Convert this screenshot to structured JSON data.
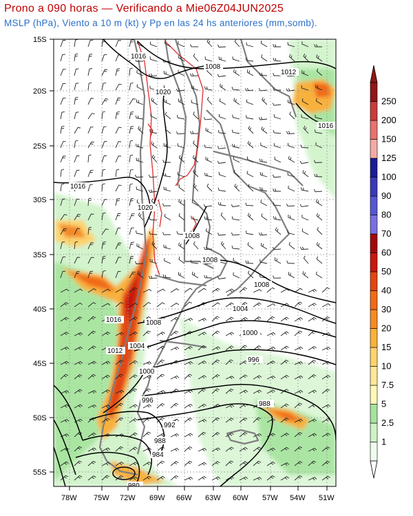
{
  "title": "Prono a 090 horas — Verificando a Mie06Z04JUN2025",
  "subtitle": "MSLP (hPa), Viento a 10 m (kt) y Pp en las 24 hs anteriores (mm,somb).",
  "lat_labels": [
    "15S",
    "20S",
    "25S",
    "30S",
    "35S",
    "40S",
    "45S",
    "50S",
    "55S"
  ],
  "lon_labels": [
    "78W",
    "75W",
    "72W",
    "69W",
    "66W",
    "63W",
    "60W",
    "57W",
    "54W",
    "51W"
  ],
  "colorbar": {
    "labels": [
      "1",
      "2.5",
      "5",
      "7.5",
      "10",
      "15",
      "20",
      "30",
      "40",
      "50",
      "60",
      "70",
      "80",
      "90",
      "100",
      "125",
      "150",
      "200",
      "250"
    ],
    "colors": [
      "#f0fbef",
      "#cdf2c6",
      "#a6e39d",
      "#fff9b8",
      "#fde79a",
      "#fdd36e",
      "#f8b13c",
      "#f48a25",
      "#f16a17",
      "#e14612",
      "#c8170e",
      "#a10909",
      "#7a6ee0",
      "#5656d0",
      "#3a3ab8",
      "#1c1c95",
      "#f3aaa6",
      "#e7726e",
      "#c83c3c",
      "#8f1717"
    ]
  },
  "isobar_labels": [
    "1016",
    "1008",
    "1012",
    "1020",
    "1016",
    "1016",
    "1020",
    "1008",
    "1008",
    "1008",
    "1016",
    "1008",
    "1004",
    "1000",
    "996",
    "1012",
    "1004",
    "1000",
    "996",
    "988",
    "992",
    "988",
    "984",
    "980"
  ],
  "colors": {
    "title": "#c00000",
    "subtitle": "#2a6fc9",
    "isobar": "#000000",
    "coast": "#7f7f7f",
    "terrain": "#e03a3a"
  }
}
